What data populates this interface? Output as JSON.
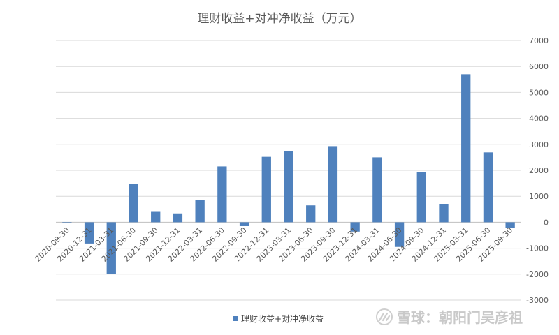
{
  "chart_data": {
    "type": "bar",
    "title": "理财收益+对冲净收益（万元）",
    "categories": [
      "2020-09-30",
      "2020-12-31",
      "2021-03-31",
      "2021-06-30",
      "2021-09-30",
      "2021-12-31",
      "2022-03-31",
      "2022-06-30",
      "2022-09-30",
      "2022-12-31",
      "2023-03-31",
      "2023-06-30",
      "2023-09-30",
      "2023-12-31",
      "2024-03-31",
      "2024-06-30",
      "2024-09-30",
      "2024-12-31",
      "2025-03-31",
      "2025-06-30",
      "2025-09-30"
    ],
    "series": [
      {
        "name": "理财收益+对冲净收益",
        "values": [
          -30,
          -820,
          -2000,
          1470,
          400,
          340,
          860,
          2150,
          -150,
          2520,
          2730,
          650,
          2930,
          -360,
          2500,
          -950,
          1930,
          700,
          5700,
          2690,
          -230
        ]
      }
    ],
    "ylim": [
      -3000,
      7000
    ],
    "yticks": [
      -3000,
      -2000,
      -1000,
      0,
      1000,
      2000,
      3000,
      4000,
      5000,
      6000,
      7000
    ],
    "y_axis_side": "right",
    "grid": true,
    "legend_position": "bottom",
    "bar_color": "#4f81bd"
  },
  "watermark": {
    "text": "雪球：朝阳门吴彦祖",
    "icon": "snowball-logo-icon"
  }
}
